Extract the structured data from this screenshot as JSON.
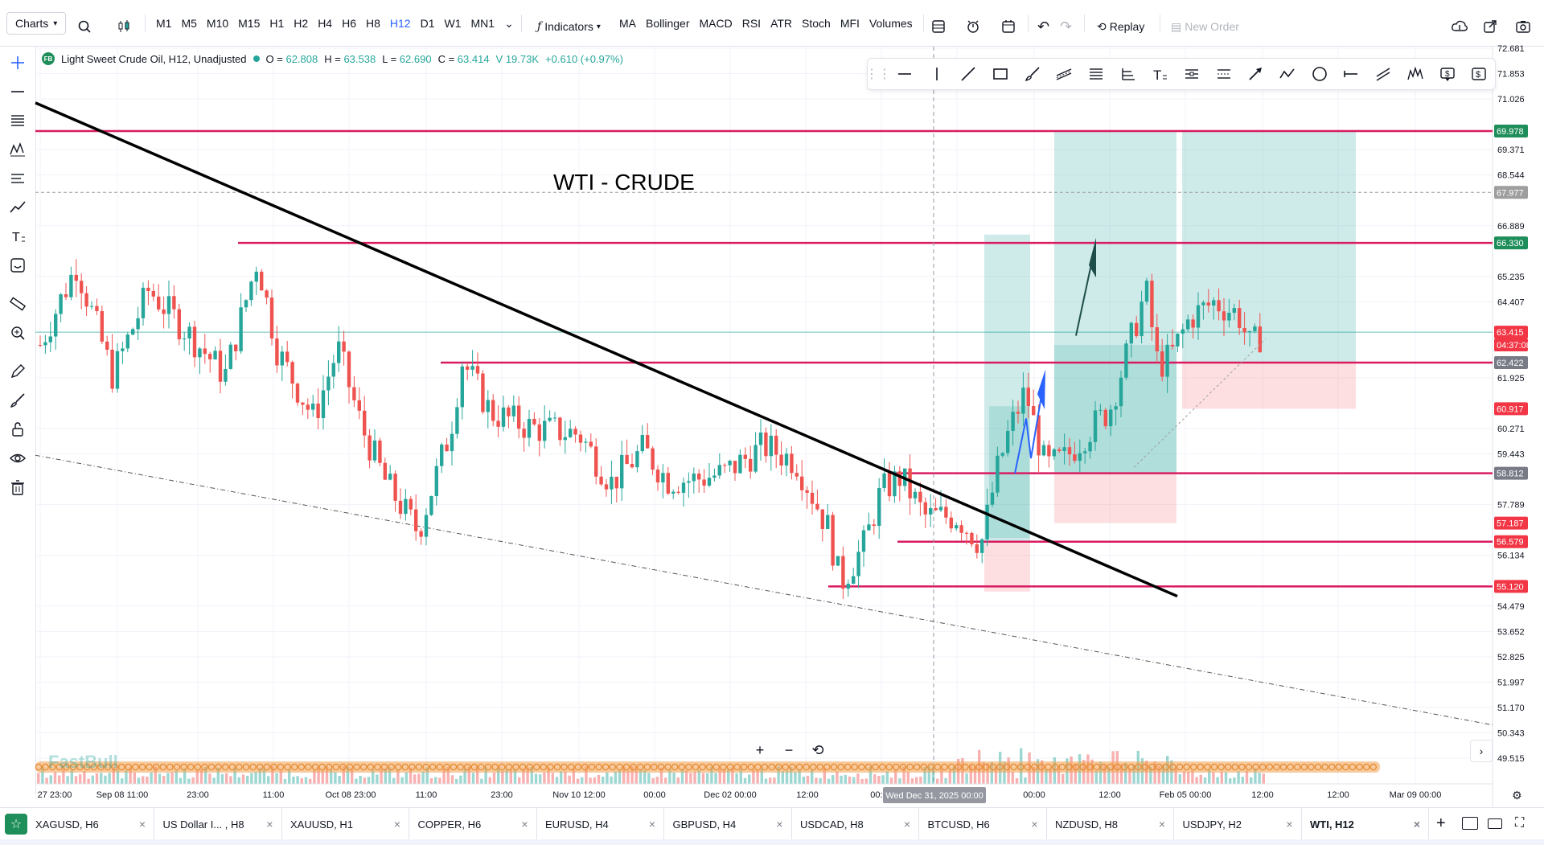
{
  "toolbar": {
    "charts_label": "Charts",
    "timeframes": [
      "M1",
      "M5",
      "M10",
      "M15",
      "H1",
      "H2",
      "H4",
      "H6",
      "H8",
      "H12",
      "D1",
      "W1",
      "MN1"
    ],
    "active_timeframe": "H12",
    "indicators_label": "Indicators",
    "indicator_items": [
      "MA",
      "Bollinger",
      "MACD",
      "RSI",
      "ATR",
      "Stoch",
      "MFI",
      "Volumes"
    ],
    "replay_label": "Replay",
    "new_order_label": "New Order"
  },
  "legend": {
    "symbol_badge": "FB",
    "title": "Light Sweet Crude Oil, H12, Unadjusted",
    "o_label": "O =",
    "o_value": "62.808",
    "h_label": "H =",
    "h_value": "63.538",
    "l_label": "L =",
    "l_value": "62.690",
    "c_label": "C =",
    "c_value": "63.414",
    "volume": "V 19.73K",
    "change": "+0.610 (+0.97%)"
  },
  "chart_title_annotation": "WTI - CRUDE",
  "watermark": "FastBull",
  "crosshair_date_label": "Wed Dec 31, 2025 00:00",
  "chart_data": {
    "type": "candlestick",
    "y_ticks": [
      "72.681",
      "71.853",
      "71.026",
      "69.371",
      "68.544",
      "66.889",
      "65.235",
      "64.407",
      "61.925",
      "60.271",
      "59.443",
      "57.789",
      "56.134",
      "54.479",
      "53.652",
      "52.825",
      "51.997",
      "51.170",
      "50.343",
      "49.515"
    ],
    "x_ticks": [
      "27 23:00",
      "Sep 08 11:00",
      "23:00",
      "11:00",
      "Oct 08 23:00",
      "11:00",
      "23:00",
      "Nov 10 12:00",
      "00:00",
      "Dec 02 00:00",
      "12:00",
      "00:00",
      "00:00",
      "12:00",
      "Feb 05 00:00",
      "12:00",
      "12:00",
      "Mar 09 00:00"
    ],
    "price_labels": [
      {
        "value": "69.978",
        "color": "#1e8e5a"
      },
      {
        "value": "67.977",
        "color": "#9e9e9e"
      },
      {
        "value": "66.330",
        "color": "#1e8e5a"
      },
      {
        "value": "63.415",
        "color": "#f23645"
      },
      {
        "value": "04:37:08",
        "color": "#f23645"
      },
      {
        "value": "62.422",
        "color": "#787b86"
      },
      {
        "value": "60.917",
        "color": "#f23645"
      },
      {
        "value": "58.812",
        "color": "#787b86"
      },
      {
        "value": "57.187",
        "color": "#f23645"
      },
      {
        "value": "56.579",
        "color": "#f23645"
      },
      {
        "value": "55.120",
        "color": "#f23645"
      }
    ],
    "horizontal_levels": [
      69.978,
      66.33,
      62.422,
      58.812,
      56.579,
      55.12
    ],
    "last_price": 63.415,
    "y_range": [
      49.515,
      72.681
    ],
    "grid": true,
    "colors": {
      "up": "#26a69a",
      "down": "#ef5350",
      "level": "#d81b60",
      "trend": "#000000"
    }
  },
  "tabs": [
    {
      "label": "XAGUSD, H6"
    },
    {
      "label": "US Dollar I... , H8"
    },
    {
      "label": "XAUUSD, H1"
    },
    {
      "label": "COPPER, H6"
    },
    {
      "label": "EURUSD, H4"
    },
    {
      "label": "GBPUSD, H4"
    },
    {
      "label": "USDCAD, H8"
    },
    {
      "label": "BTCUSD, H6"
    },
    {
      "label": "NZDUSD, H8"
    },
    {
      "label": "USDJPY, H2"
    },
    {
      "label": "WTI, H12"
    }
  ],
  "zoom": {
    "plus": "+",
    "minus": "−"
  }
}
